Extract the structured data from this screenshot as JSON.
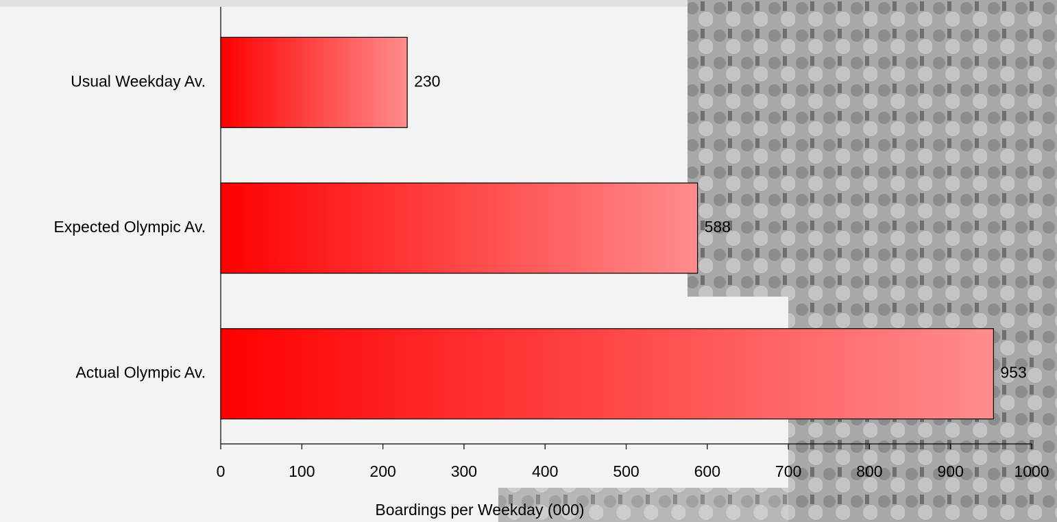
{
  "chart_data": {
    "type": "bar",
    "orientation": "horizontal",
    "categories": [
      "Usual Weekday Av.",
      "Expected Olympic Av.",
      "Actual Olympic Av."
    ],
    "values": [
      230,
      588,
      953
    ],
    "gradient_colors": [
      "#ff0000",
      "#ff8c8c"
    ],
    "xlabel": "Boardings per Weekday (000)",
    "xlim": [
      0,
      1000
    ],
    "xticks": [
      0,
      100,
      200,
      300,
      400,
      500,
      600,
      700,
      800,
      900,
      1000
    ]
  }
}
